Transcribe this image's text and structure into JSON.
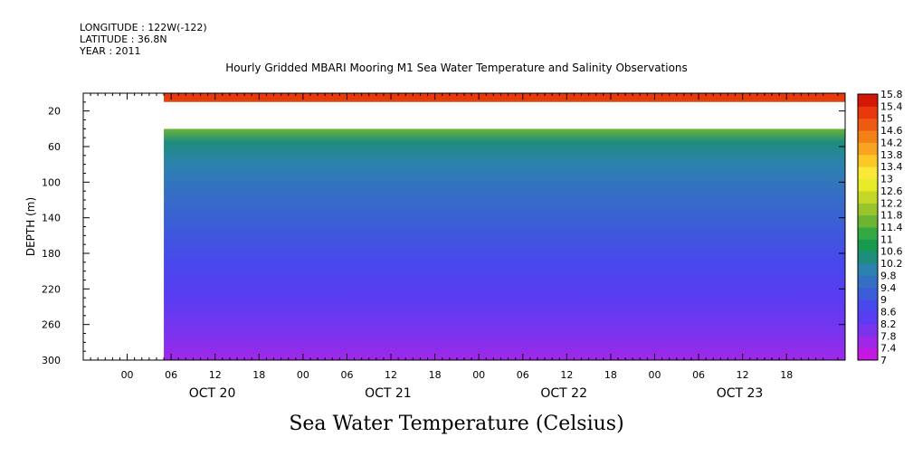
{
  "meta": {
    "longitude": "LONGITUDE : 122W(-122)",
    "latitude": "LATITUDE : 36.8N",
    "year": "YEAR : 2011"
  },
  "title": "Hourly Gridded MBARI Mooring M1 Sea Water Temperature and Salinity Observations",
  "caption": "Sea Water Temperature (Celsius)",
  "chart_data": {
    "type": "heatmap",
    "title": "Hourly Gridded MBARI Mooring M1 Sea Water Temperature and Salinity Observations",
    "xlabel": "",
    "ylabel": "DEPTH (m)",
    "colorbar_label": "Sea Water Temperature (Celsius)",
    "x_hour_ticks": [
      "00",
      "06",
      "12",
      "18",
      "00",
      "06",
      "12",
      "18",
      "00",
      "06",
      "12",
      "18",
      "00",
      "06",
      "12",
      "18"
    ],
    "x_day_labels": [
      "OCT 20",
      "OCT 21",
      "OCT 22",
      "OCT 23"
    ],
    "x_range_hours": [
      -6,
      98
    ],
    "data_start_hour": 5,
    "y_ticks": [
      20,
      60,
      100,
      140,
      180,
      220,
      260,
      300
    ],
    "y_range": [
      0,
      300
    ],
    "y_inverted": true,
    "gap_depth_range": [
      10,
      40
    ],
    "colorbar_levels": [
      7,
      7.4,
      7.8,
      8.2,
      8.6,
      9,
      9.4,
      9.8,
      10.2,
      10.6,
      11,
      11.4,
      11.8,
      12.2,
      12.6,
      13,
      13.4,
      13.8,
      14.2,
      14.6,
      15,
      15.4,
      15.8
    ],
    "colorbar_colors": [
      "#c318e0",
      "#9f28e8",
      "#7a34ee",
      "#5a3cf2",
      "#4848ec",
      "#3c5cd8",
      "#3470c2",
      "#2c82ae",
      "#1e8c7c",
      "#169a50",
      "#34a842",
      "#6cb434",
      "#98c42c",
      "#c4d828",
      "#e8ec28",
      "#fce838",
      "#fcc828",
      "#f8a420",
      "#f48018",
      "#ef5a12",
      "#e8380c",
      "#d41808"
    ],
    "depth_profile": [
      {
        "depth": 5,
        "temp": 15.2
      },
      {
        "depth": 40,
        "temp": 11.6
      },
      {
        "depth": 55,
        "temp": 10.3
      },
      {
        "depth": 80,
        "temp": 9.8
      },
      {
        "depth": 110,
        "temp": 9.4
      },
      {
        "depth": 150,
        "temp": 9.0
      },
      {
        "depth": 190,
        "temp": 8.6
      },
      {
        "depth": 230,
        "temp": 8.2
      },
      {
        "depth": 270,
        "temp": 7.8
      },
      {
        "depth": 300,
        "temp": 7.4
      }
    ],
    "grid": false,
    "legend": "colorbar-right"
  }
}
